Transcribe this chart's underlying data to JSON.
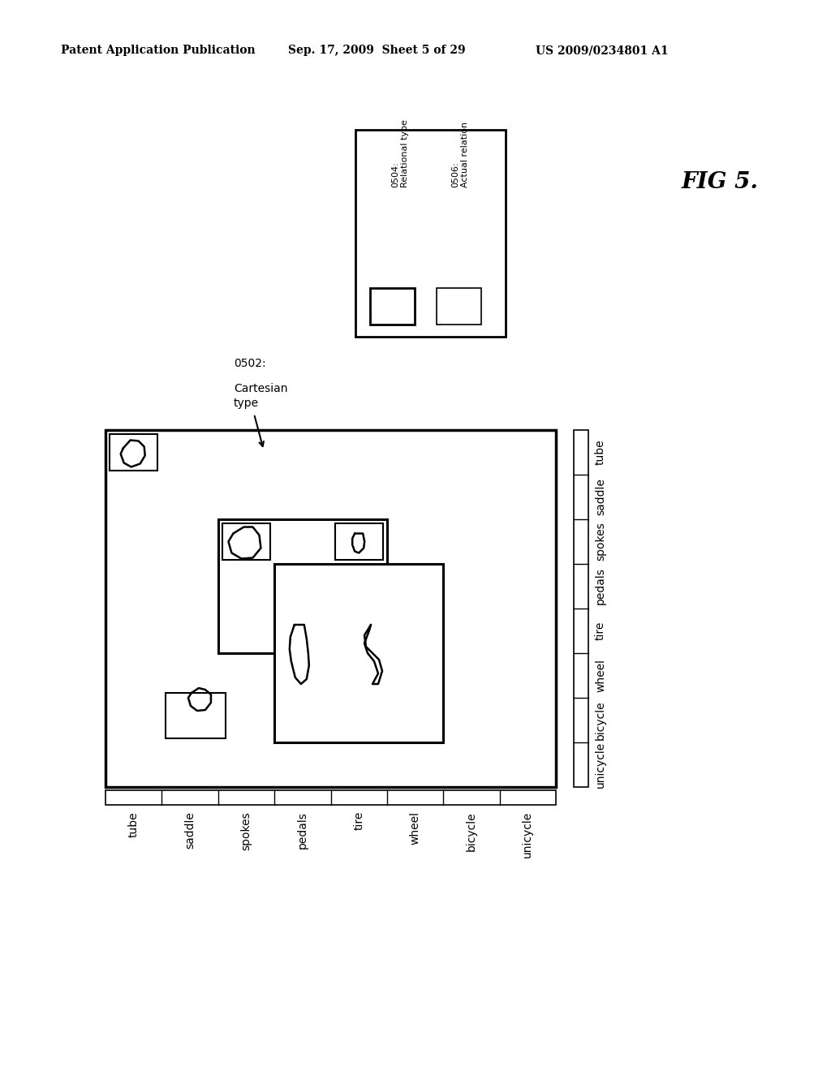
{
  "header_left": "Patent Application Publication",
  "header_mid": "Sep. 17, 2009  Sheet 5 of 29",
  "header_right": "US 2009/0234801 A1",
  "fig_label": "FIG 5.",
  "bottom_labels": [
    "tube",
    "saddle",
    "spokes",
    "pedals",
    "tire",
    "wheel",
    "bicycle",
    "unicycle"
  ],
  "right_labels": [
    "unicycle",
    "bicycle",
    "wheel",
    "tire",
    "pedals",
    "spokes",
    "saddle",
    "tube"
  ],
  "bg_color": "#ffffff"
}
